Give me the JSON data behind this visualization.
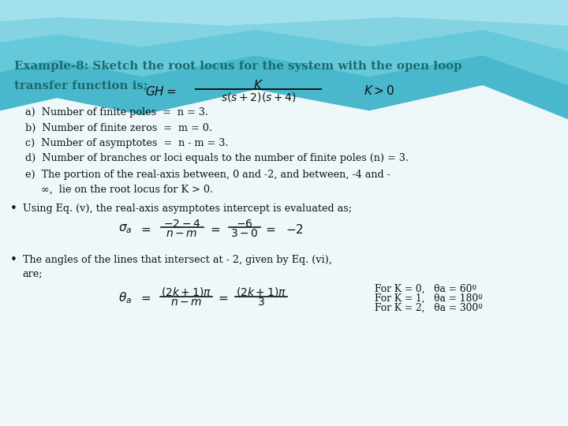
{
  "title_line1": "Example-8: Sketch the root locus for the system with the open loop",
  "title_line2": "transfer function is;",
  "title_color": "#1a6b6b",
  "body_color": "#111111",
  "list_items": [
    "a)  Number of finite poles  =  n = 3.",
    "b)  Number of finite zeros  =  m = 0.",
    "c)  Number of asymptotes  =  n - m = 3.",
    "d)  Number of branches or loci equals to the number of finite poles (n) = 3.",
    "e)  The portion of the real-axis between, 0 and -2, and between, -4 and -"
  ],
  "list_item_e_cont": "     ∞,  lie on the root locus for K > 0.",
  "bullet1": "Using Eq. (v), the real-axis asymptotes intercept is evaluated as;",
  "bullet2_line1": "The angles of the lines that intersect at - 2, given by Eq. (vi),",
  "bullet2_line2": "are;",
  "angles_table": [
    "For K = 0,   θa = 60º",
    "For K = 1,   θa = 180º",
    "For K = 2,   θa = 300º"
  ],
  "wave_colors": [
    "#5bc8d8",
    "#82d8e4",
    "#a8e4ec",
    "#c8eef4"
  ],
  "body_bg": "#e8f6f8",
  "slide_bg": "#cdeaf0"
}
